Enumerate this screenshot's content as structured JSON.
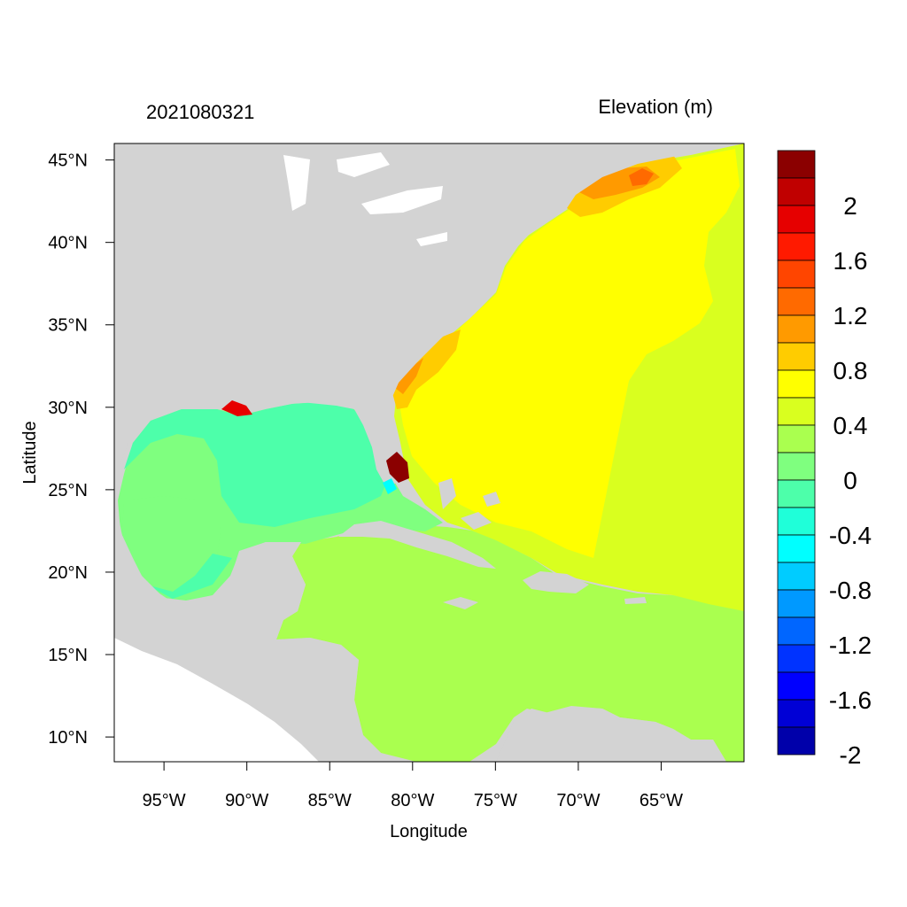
{
  "map": {
    "date_label": "2021080321",
    "variable_label": "Elevation (m)",
    "x_axis_label": "Longitude",
    "y_axis_label": "Latitude",
    "lon_range": [
      -98,
      -60
    ],
    "lat_range": [
      8.5,
      46
    ],
    "lon_ticks": [
      {
        "value": -95,
        "label": "95°W"
      },
      {
        "value": -90,
        "label": "90°W"
      },
      {
        "value": -85,
        "label": "85°W"
      },
      {
        "value": -80,
        "label": "80°W"
      },
      {
        "value": -75,
        "label": "75°W"
      },
      {
        "value": -70,
        "label": "70°W"
      },
      {
        "value": -65,
        "label": "65°W"
      }
    ],
    "lat_ticks": [
      {
        "value": 45,
        "label": "45°N"
      },
      {
        "value": 40,
        "label": "40°N"
      },
      {
        "value": 35,
        "label": "35°N"
      },
      {
        "value": 30,
        "label": "30°N"
      },
      {
        "value": 25,
        "label": "25°N"
      },
      {
        "value": 20,
        "label": "20°N"
      },
      {
        "value": 15,
        "label": "15°N"
      },
      {
        "value": 10,
        "label": "10°N"
      }
    ],
    "land_color": "#d3d3d3",
    "legend": {
      "colors_top_to_bottom": [
        "#8b0000",
        "#c00000",
        "#e60000",
        "#ff1a00",
        "#ff4500",
        "#ff6a00",
        "#ff9a00",
        "#ffcc00",
        "#ffff00",
        "#d9ff1f",
        "#aaff4f",
        "#7fff7f",
        "#4dffaa",
        "#1fffd9",
        "#00ffff",
        "#00ccff",
        "#0099ff",
        "#0066ff",
        "#0033ff",
        "#0000ff",
        "#0000d6",
        "#0000aa"
      ],
      "labels": [
        {
          "text": "2",
          "boundary": 2
        },
        {
          "text": "1.6",
          "boundary": 4
        },
        {
          "text": "1.2",
          "boundary": 6
        },
        {
          "text": "0.8",
          "boundary": 8
        },
        {
          "text": "0.4",
          "boundary": 10
        },
        {
          "text": "0",
          "boundary": 12
        },
        {
          "text": "-0.4",
          "boundary": 14
        },
        {
          "text": "-0.8",
          "boundary": 16
        },
        {
          "text": "-1.2",
          "boundary": 18
        },
        {
          "text": "-1.6",
          "boundary": 20
        },
        {
          "text": "-2",
          "boundary": 22
        }
      ]
    }
  }
}
